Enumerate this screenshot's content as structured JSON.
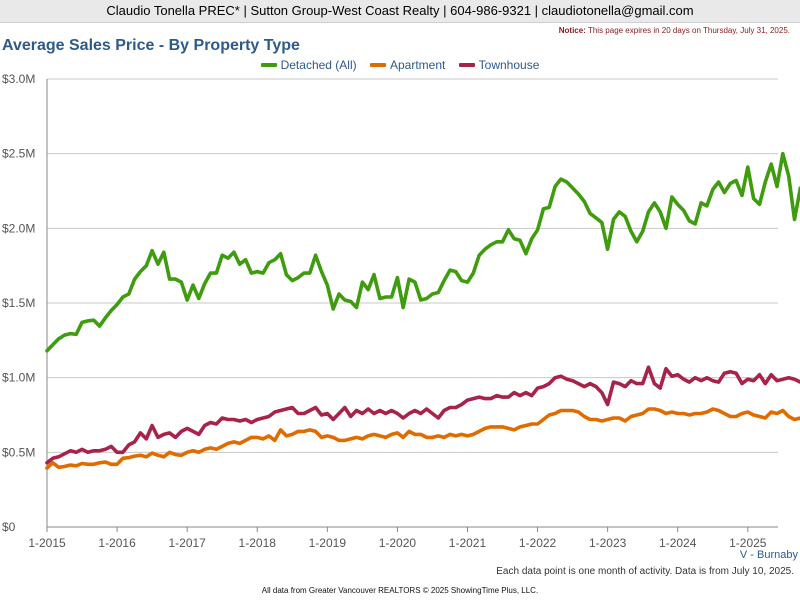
{
  "header": {
    "contact": "Claudio Tonella PREC* | Sutton Group-West Coast Realty | 604-986-9321 | claudiotonella@gmail.com",
    "notice_label": "Notice:",
    "notice_text": "This page expires in 20 days on Thursday, July 31, 2025."
  },
  "footer": {
    "region": "V - Burnaby",
    "note": "Each data point is one month of activity. Data is from July 10, 2025.",
    "credit": "All data from Greater Vancouver REALTORS © 2025 ShowingTime Plus, LLC."
  },
  "chart_data": {
    "type": "line",
    "title": "Average Sales Price - By Property Type",
    "xlabel": "",
    "ylabel": "",
    "x_start": "2015-01",
    "x_ticks": [
      "1-2015",
      "1-2016",
      "1-2017",
      "1-2018",
      "1-2019",
      "1-2020",
      "1-2021",
      "1-2022",
      "1-2023",
      "1-2024",
      "1-2025"
    ],
    "y_ticks": [
      "$0",
      "$0.5M",
      "$1.0M",
      "$1.5M",
      "$2.0M",
      "$2.5M",
      "$3.0M"
    ],
    "ylim": [
      0,
      3000000
    ],
    "grid": true,
    "legend_position": "top",
    "series": [
      {
        "name": "Detached (All)",
        "color": "#3f9c0f",
        "values": [
          1180000,
          1220000,
          1260000,
          1285000,
          1295000,
          1290000,
          1370000,
          1380000,
          1385000,
          1345000,
          1400000,
          1450000,
          1490000,
          1540000,
          1560000,
          1660000,
          1710000,
          1750000,
          1850000,
          1760000,
          1840000,
          1660000,
          1660000,
          1640000,
          1520000,
          1620000,
          1530000,
          1630000,
          1700000,
          1700000,
          1820000,
          1800000,
          1840000,
          1760000,
          1790000,
          1700000,
          1710000,
          1700000,
          1770000,
          1790000,
          1830000,
          1690000,
          1650000,
          1670000,
          1700000,
          1700000,
          1820000,
          1710000,
          1620000,
          1460000,
          1560000,
          1520000,
          1510000,
          1470000,
          1640000,
          1590000,
          1690000,
          1530000,
          1540000,
          1540000,
          1670000,
          1470000,
          1660000,
          1640000,
          1520000,
          1530000,
          1560000,
          1570000,
          1650000,
          1720000,
          1710000,
          1650000,
          1640000,
          1700000,
          1820000,
          1860000,
          1890000,
          1910000,
          1910000,
          1990000,
          1930000,
          1920000,
          1830000,
          1930000,
          1990000,
          2130000,
          2140000,
          2280000,
          2330000,
          2310000,
          2270000,
          2230000,
          2180000,
          2100000,
          2070000,
          2040000,
          1860000,
          2060000,
          2110000,
          2080000,
          1980000,
          1910000,
          1980000,
          2110000,
          2170000,
          2110000,
          2000000,
          2210000,
          2160000,
          2120000,
          2050000,
          2030000,
          2170000,
          2150000,
          2260000,
          2310000,
          2240000,
          2300000,
          2320000,
          2220000,
          2410000,
          2200000,
          2160000,
          2310000,
          2430000,
          2280000,
          2500000,
          2350000,
          2060000,
          2270000
        ]
      },
      {
        "name": "Apartment",
        "color": "#e06c00",
        "values": [
          395000,
          430000,
          400000,
          405000,
          415000,
          410000,
          425000,
          420000,
          420000,
          430000,
          435000,
          420000,
          420000,
          460000,
          465000,
          475000,
          480000,
          470000,
          495000,
          480000,
          470000,
          500000,
          485000,
          480000,
          500000,
          510000,
          500000,
          520000,
          530000,
          520000,
          540000,
          560000,
          570000,
          560000,
          580000,
          600000,
          600000,
          590000,
          610000,
          580000,
          650000,
          610000,
          620000,
          640000,
          640000,
          650000,
          640000,
          600000,
          610000,
          600000,
          580000,
          580000,
          590000,
          600000,
          590000,
          610000,
          620000,
          610000,
          600000,
          620000,
          630000,
          600000,
          640000,
          620000,
          620000,
          600000,
          600000,
          610000,
          600000,
          620000,
          610000,
          620000,
          610000,
          620000,
          640000,
          660000,
          670000,
          670000,
          670000,
          660000,
          650000,
          670000,
          680000,
          690000,
          690000,
          720000,
          750000,
          760000,
          780000,
          780000,
          780000,
          770000,
          740000,
          720000,
          720000,
          710000,
          720000,
          730000,
          730000,
          710000,
          740000,
          750000,
          760000,
          790000,
          790000,
          780000,
          760000,
          770000,
          760000,
          760000,
          750000,
          760000,
          760000,
          770000,
          790000,
          780000,
          760000,
          740000,
          740000,
          760000,
          770000,
          750000,
          740000,
          730000,
          770000,
          760000,
          780000,
          740000,
          720000,
          730000
        ]
      },
      {
        "name": "Townhouse",
        "color": "#a8234a",
        "values": [
          430000,
          460000,
          470000,
          490000,
          510000,
          500000,
          520000,
          500000,
          510000,
          510000,
          520000,
          540000,
          500000,
          500000,
          550000,
          570000,
          630000,
          590000,
          680000,
          600000,
          620000,
          630000,
          600000,
          640000,
          660000,
          640000,
          620000,
          680000,
          700000,
          690000,
          730000,
          720000,
          720000,
          710000,
          720000,
          700000,
          720000,
          730000,
          740000,
          770000,
          780000,
          790000,
          800000,
          760000,
          760000,
          780000,
          800000,
          750000,
          760000,
          720000,
          760000,
          800000,
          740000,
          780000,
          760000,
          790000,
          760000,
          780000,
          760000,
          780000,
          760000,
          730000,
          760000,
          780000,
          760000,
          790000,
          760000,
          730000,
          780000,
          800000,
          800000,
          820000,
          850000,
          860000,
          870000,
          860000,
          860000,
          880000,
          870000,
          870000,
          900000,
          880000,
          900000,
          880000,
          930000,
          940000,
          960000,
          1000000,
          1010000,
          990000,
          980000,
          960000,
          940000,
          960000,
          940000,
          900000,
          820000,
          970000,
          960000,
          940000,
          980000,
          960000,
          960000,
          1070000,
          960000,
          930000,
          1060000,
          1010000,
          1020000,
          990000,
          970000,
          1000000,
          980000,
          1000000,
          980000,
          970000,
          1030000,
          1040000,
          1030000,
          960000,
          990000,
          980000,
          1020000,
          960000,
          1020000,
          980000,
          990000,
          1000000,
          990000,
          970000
        ]
      }
    ]
  }
}
